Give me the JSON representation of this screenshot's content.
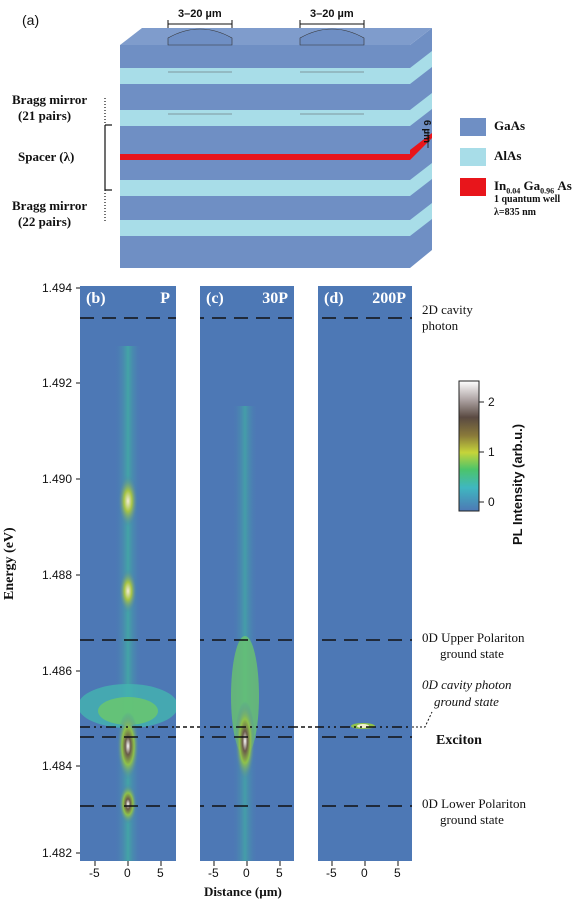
{
  "figure": {
    "panel_a_label": "(a)",
    "scale_label_1": "3–20 µm",
    "scale_label_2": "3–20 µm",
    "thickness_label": "6 µm",
    "left_labels": {
      "bragg_top_line1": "Bragg mirror",
      "bragg_top_line2": "(21 pairs)",
      "spacer": "Spacer (λ)",
      "bragg_bottom_line1": "Bragg mirror",
      "bragg_bottom_line2": "(22 pairs)"
    },
    "legend": {
      "gaas": {
        "label": "GaAs",
        "color": "#6f8fc4"
      },
      "alas": {
        "label": "AlAs",
        "color": "#a8dde8"
      },
      "qw": {
        "label_main": "In",
        "sub1": "0.04",
        "mid": "Ga",
        "sub2": "0.96",
        "end": "As",
        "line2": "1 quantum well",
        "line3": "λ=835 nm",
        "color": "#e8151b"
      }
    },
    "panels": [
      {
        "label": "(b)",
        "power": "P"
      },
      {
        "label": "(c)",
        "power": "30P"
      },
      {
        "label": "(d)",
        "power": "200P"
      }
    ],
    "y_axis": {
      "label": "Energy (eV)",
      "ticks": [
        "1.494",
        "1.492",
        "1.490",
        "1.488",
        "1.486",
        "1.484",
        "1.482"
      ]
    },
    "x_axis": {
      "label": "Distance (µm)",
      "ticks": [
        "-5",
        "0",
        "5"
      ]
    },
    "colorbar": {
      "label": "PL Intensity (arb.u.)",
      "ticks": [
        "2",
        "1",
        "0"
      ]
    },
    "annotations": {
      "cavity_2d_line1": "2D cavity",
      "cavity_2d_line2": "photon",
      "upper_line1": "0D Upper Polariton",
      "upper_line2": "ground state",
      "cavity_0d_line1": "0D cavity photon",
      "cavity_0d_line2": "ground state",
      "exciton": "Exciton",
      "lower_line1": "0D Lower Polariton",
      "lower_line2": "ground state"
    }
  },
  "chart_data": {
    "type": "heatmap",
    "ylabel": "Energy (eV)",
    "xlabel": "Distance (µm)",
    "ylim": [
      1.4818,
      1.4945
    ],
    "xlim": [
      -7,
      7
    ],
    "colorbar_range": [
      0,
      2.5
    ],
    "energy_levels": [
      {
        "name": "2D cavity photon",
        "energy": 1.4937,
        "style": "dashed"
      },
      {
        "name": "0D Upper Polariton ground state",
        "energy": 1.4865,
        "style": "dashed"
      },
      {
        "name": "0D cavity photon ground state",
        "energy": 1.48465,
        "style": "dash-dot"
      },
      {
        "name": "Exciton",
        "energy": 1.4844,
        "style": "dashed"
      },
      {
        "name": "0D Lower Polariton ground state",
        "energy": 1.4829,
        "style": "dashed"
      }
    ],
    "panels": [
      {
        "label": "(b)",
        "power": "P",
        "emission_peaks": [
          {
            "x": 0,
            "energy": 1.4894,
            "intensity": 1.3
          },
          {
            "x": 0,
            "energy": 1.4876,
            "intensity": 1.2
          },
          {
            "x": 0,
            "energy": 1.484,
            "intensity": 2.4
          },
          {
            "x": 0,
            "energy": 1.483,
            "intensity": 2.0
          }
        ]
      },
      {
        "label": "(c)",
        "power": "30P",
        "emission_peaks": [
          {
            "x": -0.5,
            "energy": 1.4865,
            "intensity": 0.8
          },
          {
            "x": -0.5,
            "energy": 1.4843,
            "intensity": 2.1
          }
        ]
      },
      {
        "label": "(d)",
        "power": "200P",
        "emission_peaks": [
          {
            "x": -0.5,
            "energy": 1.48465,
            "intensity": 2.5
          }
        ]
      }
    ]
  }
}
